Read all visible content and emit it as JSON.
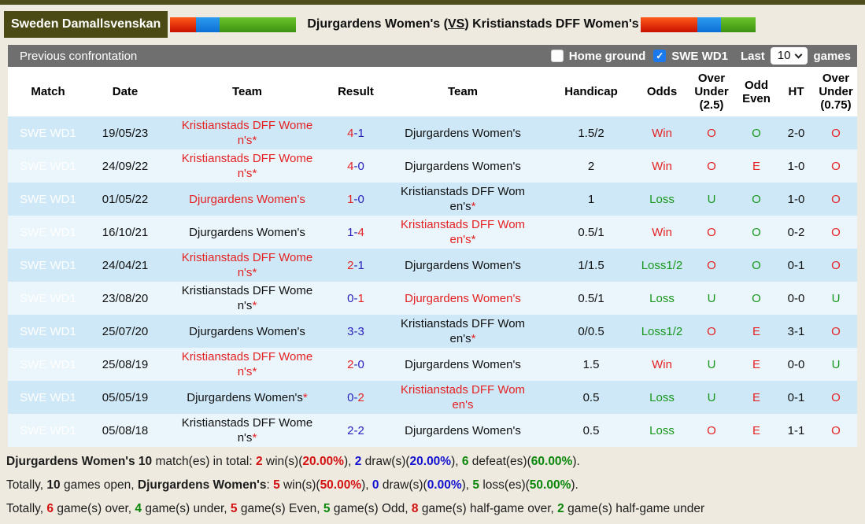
{
  "colors": {
    "olive": "#4b4a14",
    "bar_gray": "#6f6f6f",
    "row_blue_dark": "#cfe8f7",
    "row_blue_light": "#eaf5fc",
    "flag_red": "#e03000",
    "flag_blue": "#1a82e6",
    "flag_green": "#4fae1e",
    "win_red": "#e42222",
    "loss_green": "#17971c",
    "score_blue": "#2a22bb",
    "checkbox_checked_blue": "#1a79ec"
  },
  "header": {
    "league": "Sweden Damallsvenskan",
    "home_team": "Djurgardens Women's",
    "paren_open": " (",
    "vs_label": "VS",
    "paren_close": ") ",
    "away_team": "Kristianstads DFF Women's"
  },
  "toolbar": {
    "section_title": "Previous confrontation",
    "home_ground_label": "Home ground",
    "home_ground_checked": false,
    "check_glyph": "✓",
    "league_filter_label": "SWE WD1",
    "league_filter_checked": true,
    "last_label": "Last",
    "games_count": "10",
    "games_label": "games"
  },
  "table": {
    "star_symbol": "*",
    "columns": [
      "Match",
      "Date",
      "Team",
      "Result",
      "Team",
      "Handicap",
      "Odds",
      "Over Under (2.5)",
      "Odd Even",
      "HT",
      "Over Under (0.75)"
    ],
    "rows": [
      {
        "league": "SWE WD1",
        "date": "19/05/23",
        "team1": {
          "name": "Kristianstads DFF Women's",
          "star": true,
          "color": "red"
        },
        "score": {
          "home": "4",
          "home_color": "red",
          "away": "1",
          "away_color": "blue"
        },
        "team2": {
          "name": "Djurgardens Women's",
          "star": false,
          "color": "black"
        },
        "handicap": "1.5/2",
        "odds": {
          "text": "Win",
          "color": "red"
        },
        "ou25": {
          "text": "O",
          "color": "red"
        },
        "odd_even": {
          "text": "O",
          "color": "green"
        },
        "ht": "2-0",
        "ou075": {
          "text": "O",
          "color": "red"
        }
      },
      {
        "league": "SWE WD1",
        "date": "24/09/22",
        "team1": {
          "name": "Kristianstads DFF Women's",
          "star": true,
          "color": "red"
        },
        "score": {
          "home": "4",
          "home_color": "red",
          "away": "0",
          "away_color": "blue"
        },
        "team2": {
          "name": "Djurgardens Women's",
          "star": false,
          "color": "black"
        },
        "handicap": "2",
        "odds": {
          "text": "Win",
          "color": "red"
        },
        "ou25": {
          "text": "O",
          "color": "red"
        },
        "odd_even": {
          "text": "E",
          "color": "red"
        },
        "ht": "1-0",
        "ou075": {
          "text": "O",
          "color": "red"
        }
      },
      {
        "league": "SWE WD1",
        "date": "01/05/22",
        "team1": {
          "name": "Djurgardens Women's",
          "star": false,
          "color": "red"
        },
        "score": {
          "home": "1",
          "home_color": "red",
          "away": "0",
          "away_color": "blue"
        },
        "team2": {
          "name": "Kristianstads DFF Women's",
          "star": true,
          "color": "black"
        },
        "handicap": "1",
        "odds": {
          "text": "Loss",
          "color": "green"
        },
        "ou25": {
          "text": "U",
          "color": "green"
        },
        "odd_even": {
          "text": "O",
          "color": "green"
        },
        "ht": "1-0",
        "ou075": {
          "text": "O",
          "color": "red"
        }
      },
      {
        "league": "SWE WD1",
        "date": "16/10/21",
        "team1": {
          "name": "Djurgardens Women's",
          "star": false,
          "color": "black"
        },
        "score": {
          "home": "1",
          "home_color": "blue",
          "away": "4",
          "away_color": "red"
        },
        "team2": {
          "name": "Kristianstads DFF Women's",
          "star": true,
          "color": "red"
        },
        "handicap": "0.5/1",
        "odds": {
          "text": "Win",
          "color": "red"
        },
        "ou25": {
          "text": "O",
          "color": "red"
        },
        "odd_even": {
          "text": "O",
          "color": "green"
        },
        "ht": "0-2",
        "ou075": {
          "text": "O",
          "color": "red"
        }
      },
      {
        "league": "SWE WD1",
        "date": "24/04/21",
        "team1": {
          "name": "Kristianstads DFF Women's",
          "star": true,
          "color": "red"
        },
        "score": {
          "home": "2",
          "home_color": "red",
          "away": "1",
          "away_color": "blue"
        },
        "team2": {
          "name": "Djurgardens Women's",
          "star": false,
          "color": "black"
        },
        "handicap": "1/1.5",
        "odds": {
          "text": "Loss1/2",
          "color": "green"
        },
        "ou25": {
          "text": "O",
          "color": "red"
        },
        "odd_even": {
          "text": "O",
          "color": "green"
        },
        "ht": "0-1",
        "ou075": {
          "text": "O",
          "color": "red"
        }
      },
      {
        "league": "SWE WD1",
        "date": "23/08/20",
        "team1": {
          "name": "Kristianstads DFF Women's",
          "star": true,
          "color": "black"
        },
        "score": {
          "home": "0",
          "home_color": "blue",
          "away": "1",
          "away_color": "red"
        },
        "team2": {
          "name": "Djurgardens Women's",
          "star": false,
          "color": "red"
        },
        "handicap": "0.5/1",
        "odds": {
          "text": "Loss",
          "color": "green"
        },
        "ou25": {
          "text": "U",
          "color": "green"
        },
        "odd_even": {
          "text": "O",
          "color": "green"
        },
        "ht": "0-0",
        "ou075": {
          "text": "U",
          "color": "green"
        }
      },
      {
        "league": "SWE WD1",
        "date": "25/07/20",
        "team1": {
          "name": "Djurgardens Women's",
          "star": false,
          "color": "black"
        },
        "score": {
          "home": "3",
          "home_color": "blue",
          "away": "3",
          "away_color": "blue"
        },
        "team2": {
          "name": "Kristianstads DFF Women's",
          "star": true,
          "color": "black"
        },
        "handicap": "0/0.5",
        "odds": {
          "text": "Loss1/2",
          "color": "green"
        },
        "ou25": {
          "text": "O",
          "color": "red"
        },
        "odd_even": {
          "text": "E",
          "color": "red"
        },
        "ht": "3-1",
        "ou075": {
          "text": "O",
          "color": "red"
        }
      },
      {
        "league": "SWE WD1",
        "date": "25/08/19",
        "team1": {
          "name": "Kristianstads DFF Women's",
          "star": true,
          "color": "red"
        },
        "score": {
          "home": "2",
          "home_color": "red",
          "away": "0",
          "away_color": "blue"
        },
        "team2": {
          "name": "Djurgardens Women's",
          "star": false,
          "color": "black"
        },
        "handicap": "1.5",
        "odds": {
          "text": "Win",
          "color": "red"
        },
        "ou25": {
          "text": "U",
          "color": "green"
        },
        "odd_even": {
          "text": "E",
          "color": "red"
        },
        "ht": "0-0",
        "ou075": {
          "text": "U",
          "color": "green"
        }
      },
      {
        "league": "SWE WD1",
        "date": "05/05/19",
        "team1": {
          "name": "Djurgardens Women's",
          "star": true,
          "color": "black"
        },
        "score": {
          "home": "0",
          "home_color": "blue",
          "away": "2",
          "away_color": "red"
        },
        "team2": {
          "name": "Kristianstads DFF Women's",
          "star": false,
          "color": "red"
        },
        "handicap": "0.5",
        "odds": {
          "text": "Loss",
          "color": "green"
        },
        "ou25": {
          "text": "U",
          "color": "green"
        },
        "odd_even": {
          "text": "E",
          "color": "red"
        },
        "ht": "0-1",
        "ou075": {
          "text": "O",
          "color": "red"
        }
      },
      {
        "league": "SWE WD1",
        "date": "05/08/18",
        "team1": {
          "name": "Kristianstads DFF Women's",
          "star": true,
          "color": "black"
        },
        "score": {
          "home": "2",
          "home_color": "blue",
          "away": "2",
          "away_color": "blue"
        },
        "team2": {
          "name": "Djurgardens Women's",
          "star": false,
          "color": "black"
        },
        "handicap": "0.5",
        "odds": {
          "text": "Loss",
          "color": "green"
        },
        "ou25": {
          "text": "O",
          "color": "red"
        },
        "odd_even": {
          "text": "E",
          "color": "red"
        },
        "ht": "1-1",
        "ou075": {
          "text": "O",
          "color": "red"
        }
      }
    ]
  },
  "summary": {
    "lines": [
      [
        {
          "t": "Djurgardens Women's 10",
          "b": true,
          "c": "black"
        },
        {
          "t": " match(es) in total: ",
          "c": "black"
        },
        {
          "t": "2",
          "b": true,
          "c": "red"
        },
        {
          "t": " win(s)(",
          "c": "black"
        },
        {
          "t": "20.00%",
          "b": true,
          "c": "red"
        },
        {
          "t": "), ",
          "c": "black"
        },
        {
          "t": "2",
          "b": true,
          "c": "blue"
        },
        {
          "t": " draw(s)(",
          "c": "black"
        },
        {
          "t": "20.00%",
          "b": true,
          "c": "blue"
        },
        {
          "t": "), ",
          "c": "black"
        },
        {
          "t": "6",
          "b": true,
          "c": "green"
        },
        {
          "t": " defeat(es)(",
          "c": "black"
        },
        {
          "t": "60.00%",
          "b": true,
          "c": "green"
        },
        {
          "t": ").",
          "c": "black"
        }
      ],
      [
        {
          "t": "Totally, ",
          "c": "black"
        },
        {
          "t": "10",
          "b": true,
          "c": "black"
        },
        {
          "t": " games open, ",
          "c": "black"
        },
        {
          "t": "Djurgardens Women's",
          "b": true,
          "c": "black"
        },
        {
          "t": ": ",
          "c": "black"
        },
        {
          "t": "5",
          "b": true,
          "c": "red"
        },
        {
          "t": " win(s)(",
          "c": "black"
        },
        {
          "t": "50.00%",
          "b": true,
          "c": "red"
        },
        {
          "t": "), ",
          "c": "black"
        },
        {
          "t": "0",
          "b": true,
          "c": "blue"
        },
        {
          "t": " draw(s)(",
          "c": "black"
        },
        {
          "t": "0.00%",
          "b": true,
          "c": "blue"
        },
        {
          "t": "), ",
          "c": "black"
        },
        {
          "t": "5",
          "b": true,
          "c": "green"
        },
        {
          "t": " loss(es)(",
          "c": "black"
        },
        {
          "t": "50.00%",
          "b": true,
          "c": "green"
        },
        {
          "t": ").",
          "c": "black"
        }
      ],
      [
        {
          "t": "Totally, ",
          "c": "black"
        },
        {
          "t": "6",
          "b": true,
          "c": "red"
        },
        {
          "t": " game(s) over, ",
          "c": "black"
        },
        {
          "t": "4",
          "b": true,
          "c": "green"
        },
        {
          "t": " game(s) under, ",
          "c": "black"
        },
        {
          "t": "5",
          "b": true,
          "c": "red"
        },
        {
          "t": " game(s) Even, ",
          "c": "black"
        },
        {
          "t": "5",
          "b": true,
          "c": "green"
        },
        {
          "t": " game(s) Odd, ",
          "c": "black"
        },
        {
          "t": "8",
          "b": true,
          "c": "red"
        },
        {
          "t": " game(s) half-game over, ",
          "c": "black"
        },
        {
          "t": "2",
          "b": true,
          "c": "green"
        },
        {
          "t": " game(s) half-game under",
          "c": "black"
        }
      ]
    ]
  }
}
